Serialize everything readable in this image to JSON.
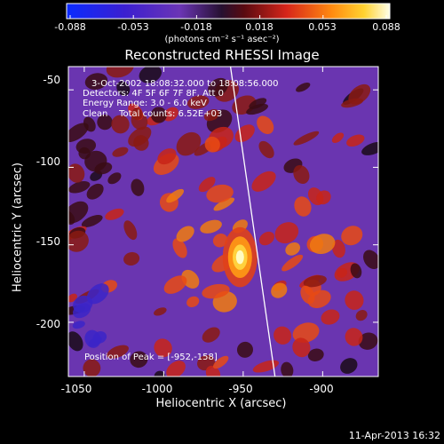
{
  "colorbar": {
    "tick_labels": [
      "-0.088",
      "-0.053",
      "-0.018",
      "0.018",
      "0.053",
      "0.088"
    ],
    "unit_label": "(photons cm⁻² s⁻¹ asec⁻²)",
    "range": [
      -0.088,
      0.088
    ]
  },
  "image": {
    "title": "Reconstructed RHESSI Image",
    "info_lines": [
      "3-Oct-2002 18:08:32.000 to 18:08:56.000",
      "Detectors: 4F 5F 6F 7F 8F, Att 0",
      "Energy Range: 3.0 - 6.0 keV",
      "Clean    Total counts: 6.52E+03"
    ],
    "peak_label": "Position of Peak = [-952,-158]",
    "peak_position": [
      -952,
      -158
    ],
    "x_axis_label": "Heliocentric X (arcsec)",
    "y_axis_label": "Heliocentric Y (arcsec)",
    "x_tick_labels": [
      "-1050",
      "-1000",
      "-950",
      "-900"
    ],
    "y_tick_labels": [
      "-50",
      "-100",
      "-150",
      "-200"
    ],
    "xlim": [
      -1060,
      -865
    ],
    "ylim": [
      -235,
      -35
    ],
    "limb_line": {
      "x_at_top": -958,
      "x_at_bottom": -930
    }
  },
  "timestamp": "11-Apr-2013 16:32",
  "colors": {
    "background": "#000000",
    "text": "#ffffff",
    "colormap": "IDL rainbow-like (blue-purple-red-yellow-white)"
  }
}
